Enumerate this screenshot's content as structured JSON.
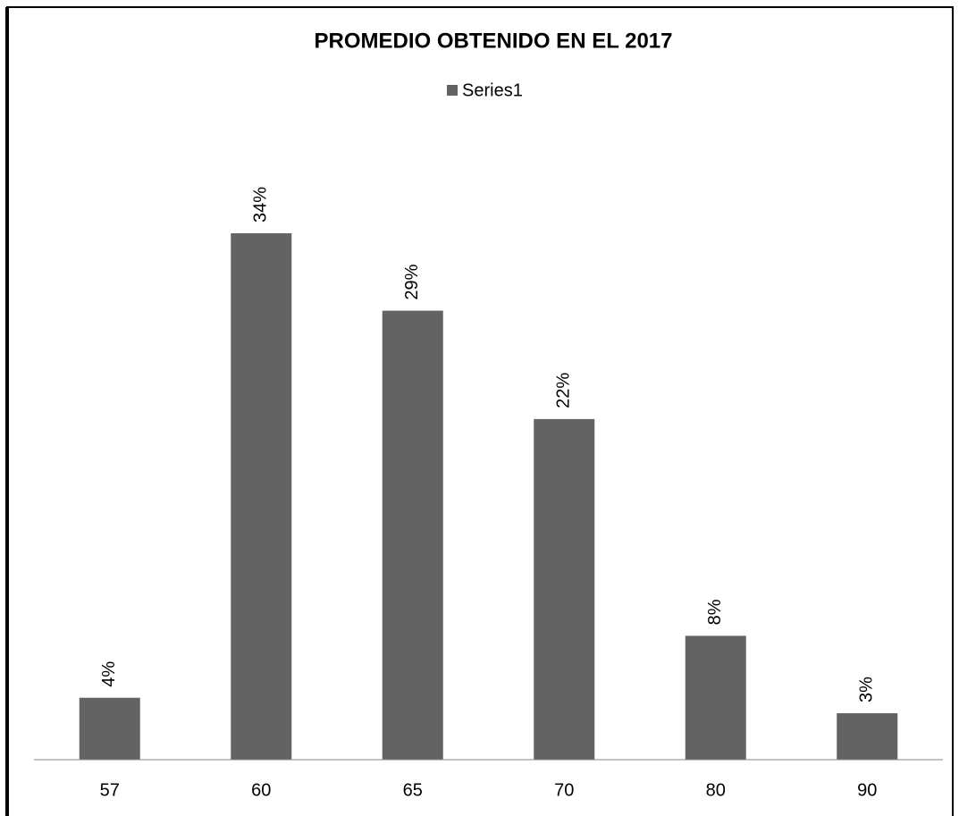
{
  "chart_data": {
    "type": "bar",
    "title": "PROMEDIO OBTENIDO EN EL 2017",
    "categories": [
      "57",
      "60",
      "65",
      "70",
      "80",
      "90"
    ],
    "series": [
      {
        "name": "Series1",
        "color": "#636363",
        "values": [
          4,
          34,
          29,
          22,
          8,
          3
        ],
        "value_labels": [
          "4%",
          "34%",
          "29%",
          "22%",
          "8%",
          "3%"
        ]
      }
    ],
    "legend": "top"
  }
}
